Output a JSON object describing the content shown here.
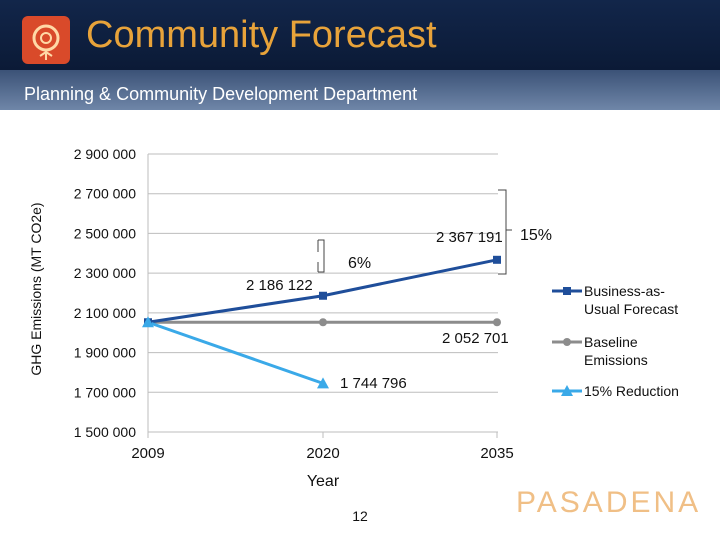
{
  "header": {
    "title": "Community Forecast",
    "subtitle": "Planning & Community Development Department"
  },
  "footer": {
    "page_number": "12",
    "brand": "PASADENA"
  },
  "colors": {
    "bau": "#1f4e9a",
    "baseline": "#8c8c8c",
    "reduction": "#3aa9e8",
    "header_bg": "#12264a",
    "title": "#e8a33a"
  },
  "chart_data": {
    "type": "line",
    "title": "",
    "xlabel": "Year",
    "ylabel": "GHG Emissions (MT CO2e)",
    "categories": [
      "2009",
      "2020",
      "2035"
    ],
    "x_tick_labels": [
      "2009",
      "2020",
      "2035"
    ],
    "y_tick_labels": [
      "2 900 000",
      "2 700 000",
      "2 500 000",
      "2 300 000",
      "2 100 000",
      "1 900 000",
      "1 700 000",
      "1 500 000"
    ],
    "ylim": [
      1500000,
      2900000
    ],
    "y_ticks": [
      2900000,
      2700000,
      2500000,
      2300000,
      2100000,
      1900000,
      1700000,
      1500000
    ],
    "grid": true,
    "legend_position": "right",
    "series": [
      {
        "name": "Business-as-Usual Forecast",
        "legend_lines": [
          "Business-as-",
          "Usual Forecast"
        ],
        "values": [
          2052701,
          2186122,
          2367191
        ],
        "marker": "square",
        "color": "#1f4e9a"
      },
      {
        "name": "Baseline Emissions",
        "legend_lines": [
          "Baseline",
          "Emissions"
        ],
        "values": [
          2052701,
          2052701,
          2052701
        ],
        "marker": "circle",
        "color": "#8c8c8c"
      },
      {
        "name": "15% Reduction",
        "legend_lines": [
          "15% Reduction"
        ],
        "values": [
          2052701,
          1744796,
          null
        ],
        "marker": "triangle",
        "color": "#3aa9e8"
      }
    ],
    "data_labels": {
      "bau_2020": "2 186 122",
      "bau_2035": "2 367 191",
      "baseline": "2 052 701",
      "reduction_2020": "1 744 796"
    },
    "annotations": {
      "pct_2020": "6%",
      "pct_2035": "15%"
    }
  }
}
